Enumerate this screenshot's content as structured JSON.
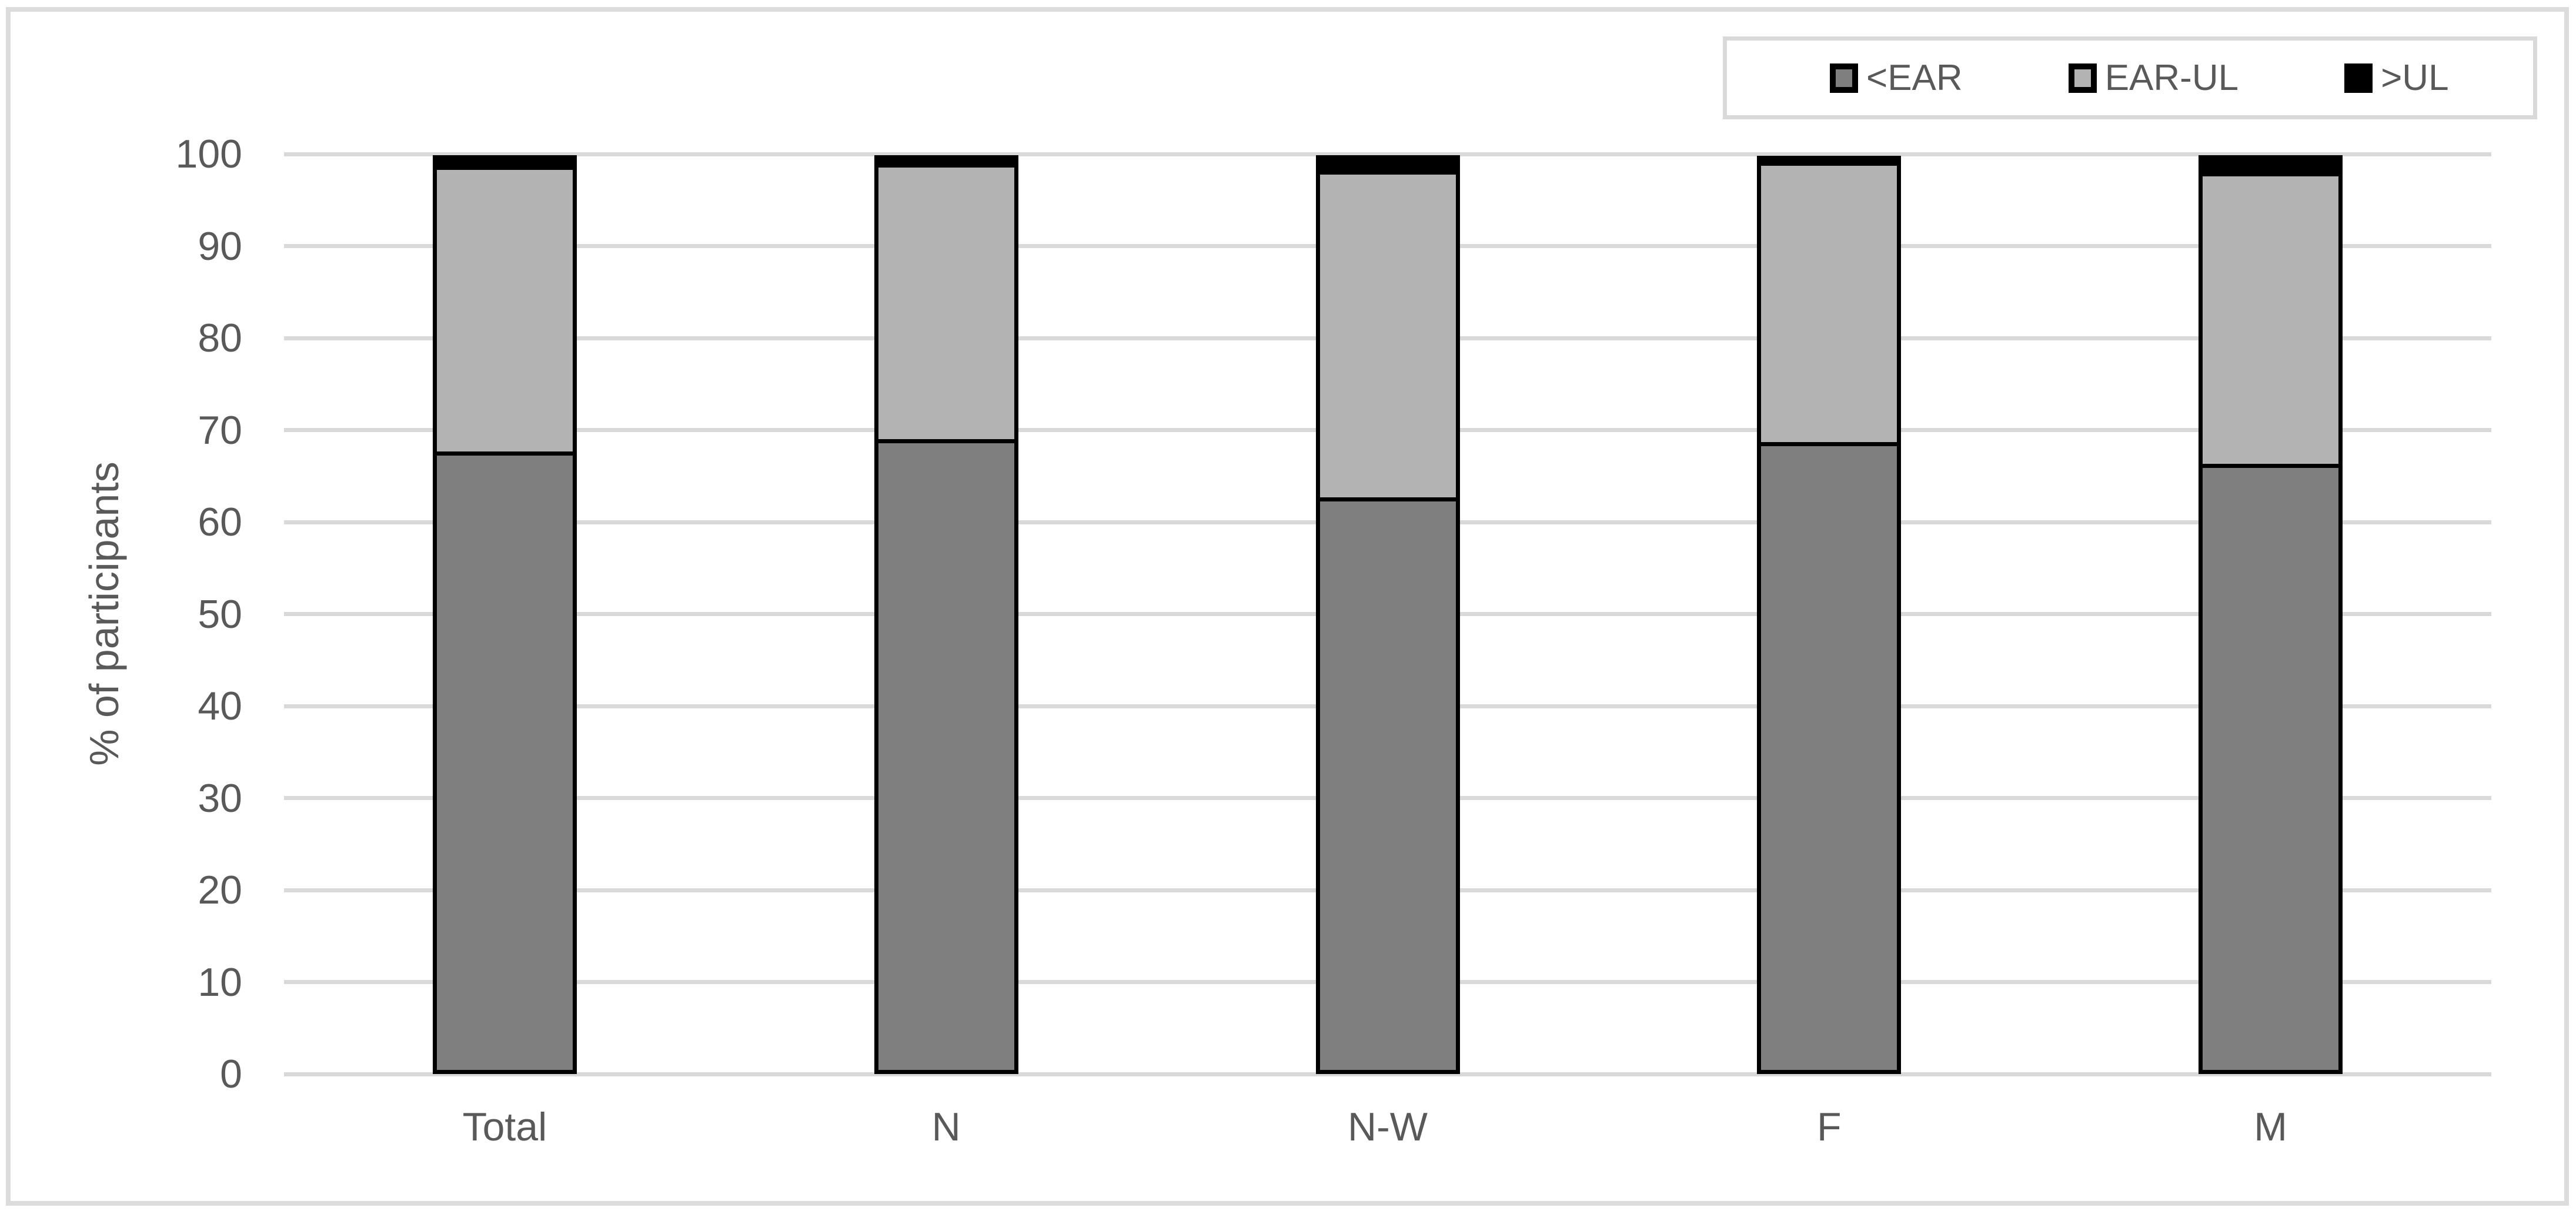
{
  "figure": {
    "background": "#ffffff",
    "frame_color": "#dcdcdc"
  },
  "legend": {
    "position": "top-right",
    "border_color": "#d9d9d9",
    "items": [
      {
        "label": "<EAR",
        "color": "#7f7f7f",
        "icon": "swatch-dark-gray"
      },
      {
        "label": "EAR-UL",
        "color": "#b3b3b3",
        "icon": "swatch-light-gray"
      },
      {
        "label": ">UL",
        "color": "#000000",
        "icon": "swatch-black"
      }
    ]
  },
  "chart_data": {
    "type": "bar",
    "stacked": true,
    "title": "",
    "xlabel": "",
    "ylabel": "% of participants",
    "categories": [
      "Total",
      "N",
      "N-W",
      "F",
      "M"
    ],
    "series": [
      {
        "name": "<EAR",
        "color": "#7f7f7f",
        "values": [
          67.7,
          69.0,
          62.7,
          68.7,
          66.3
        ]
      },
      {
        "name": "EAR-UL",
        "color": "#b3b3b3",
        "values": [
          31.0,
          30.0,
          35.5,
          30.5,
          31.7
        ]
      },
      {
        "name": ">UL",
        "color": "#000000",
        "values": [
          1.2,
          0.9,
          1.7,
          0.6,
          1.9
        ]
      }
    ],
    "ylim": [
      0,
      100
    ],
    "yticks": [
      0,
      10,
      20,
      30,
      40,
      50,
      60,
      70,
      80,
      90,
      100
    ],
    "grid": true,
    "gridline_color": "#d9d9d9",
    "bar_outline_color": "#000000",
    "text_color": "#595959",
    "legend_position": "top-right"
  }
}
